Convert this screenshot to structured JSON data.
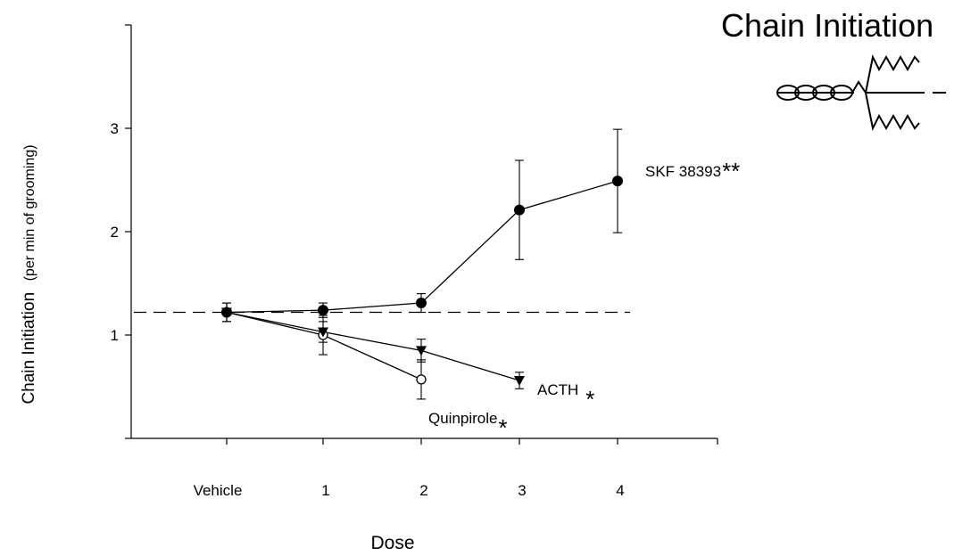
{
  "figure_title": "Chain Initiation",
  "chart_data": {
    "type": "line",
    "title": "",
    "xlabel": "Dose",
    "ylabel": "Chain Initiation",
    "ylabel_sub": "(per min of grooming)",
    "categories": [
      "Vehicle",
      "1",
      "2",
      "3",
      "4"
    ],
    "ylim": [
      0,
      4
    ],
    "yticks": [
      "1",
      "2",
      "3"
    ],
    "grid": false,
    "reference_line": {
      "y": 1.22,
      "style": "dashed"
    },
    "series": [
      {
        "name": "SKF 38393",
        "mark": "**",
        "marker": "filled-circle",
        "x": [
          "Vehicle",
          "1",
          "2",
          "3",
          "4"
        ],
        "values": [
          1.22,
          1.24,
          1.31,
          2.21,
          2.49
        ],
        "error": [
          0.09,
          0.07,
          0.09,
          0.48,
          0.5
        ]
      },
      {
        "name": "ACTH",
        "mark": "*",
        "marker": "filled-triangle-down",
        "x": [
          "Vehicle",
          "1",
          "2",
          "3"
        ],
        "values": [
          1.22,
          1.03,
          0.85,
          0.56
        ],
        "error": [
          0.09,
          0.1,
          0.11,
          0.08
        ]
      },
      {
        "name": "Quinpirole",
        "mark": "*",
        "marker": "open-circle",
        "x": [
          "Vehicle",
          "1",
          "2"
        ],
        "values": [
          1.22,
          1.0,
          0.57
        ],
        "error": [
          0.09,
          0.19,
          0.19
        ]
      }
    ]
  },
  "colors": {
    "ink": "#000000",
    "background": "#ffffff"
  }
}
